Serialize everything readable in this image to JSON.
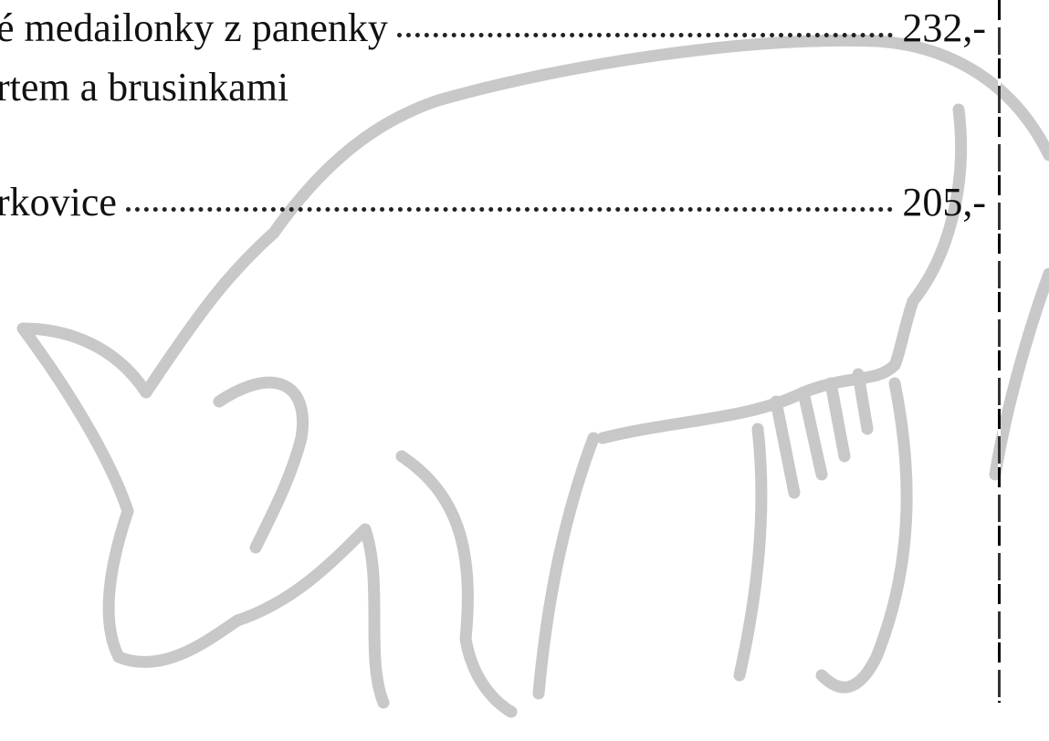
{
  "menu": {
    "items": [
      {
        "name": "é medailonky z panenky",
        "description": "rtem a brusinkami",
        "price": "232,-"
      },
      {
        "name": "rkovice",
        "price": "205,-"
      }
    ]
  }
}
